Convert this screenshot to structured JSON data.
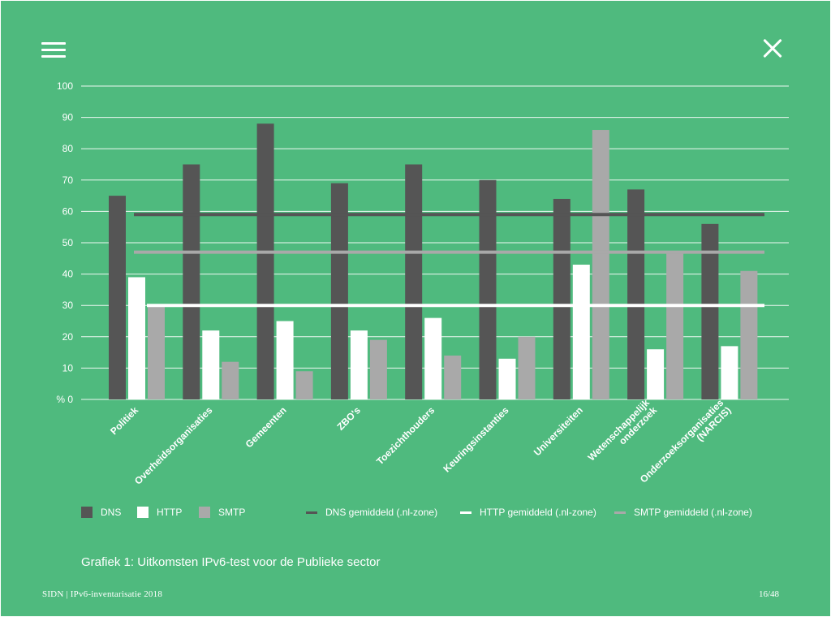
{
  "nav": {
    "menu_icon": "menu-icon",
    "close_icon": "close-icon"
  },
  "colors": {
    "background": "#4fba7e",
    "dns": "#555555",
    "http": "#ffffff",
    "smtp": "#a9a9a9",
    "grid": "#ffffff"
  },
  "chart_data": {
    "type": "bar",
    "ylabel": "%",
    "ylim": [
      0,
      100
    ],
    "yticks": [
      "% 0",
      "10",
      "20",
      "30",
      "40",
      "50",
      "60",
      "70",
      "80",
      "90",
      "100"
    ],
    "grid": true,
    "categories": [
      [
        "Politiek"
      ],
      [
        "Overheidsorganisaties"
      ],
      [
        "Gemeenten"
      ],
      [
        "ZBO's"
      ],
      [
        "Toezichthouders"
      ],
      [
        "Keuringsinstanties"
      ],
      [
        "Universiteiten"
      ],
      [
        "Wetenschappelijk",
        "onderzoek"
      ],
      [
        "Onderzoeksorganisaties",
        "(NARCIS)"
      ]
    ],
    "series": [
      {
        "name": "DNS",
        "values": [
          65,
          75,
          88,
          69,
          75,
          70,
          64,
          67,
          56
        ]
      },
      {
        "name": "HTTP",
        "values": [
          39,
          22,
          25,
          22,
          26,
          13,
          43,
          16,
          17
        ]
      },
      {
        "name": "SMTP",
        "values": [
          30,
          12,
          9,
          19,
          14,
          20,
          86,
          47,
          41
        ]
      }
    ],
    "reference_lines": [
      {
        "name": "DNS gemiddeld (.nl-zone)",
        "value": 59
      },
      {
        "name": "HTTP gemiddeld (.nl-zone)",
        "value": 30
      },
      {
        "name": "SMTP gemiddeld (.nl-zone)",
        "value": 47
      }
    ],
    "legend_position": "bottom"
  },
  "legend": {
    "dns": "DNS",
    "http": "HTTP",
    "smtp": "SMTP",
    "dns_avg": "DNS gemiddeld (.nl-zone)",
    "http_avg": "HTTP gemiddeld (.nl-zone)",
    "smtp_avg": "SMTP gemiddeld (.nl-zone)"
  },
  "caption": "Grafiek 1: Uitkomsten IPv6-test voor de Publieke sector",
  "footer": {
    "left": "SIDN  |  IPv6-inventarisatie 2018",
    "page": "16/48"
  }
}
